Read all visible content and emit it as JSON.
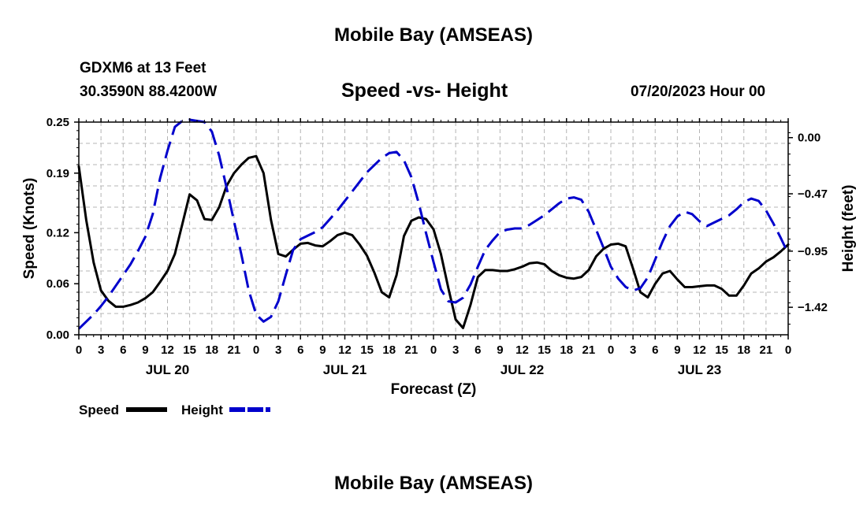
{
  "header": {
    "main_title": "Mobile Bay (AMSEAS)",
    "station": "GDXM6 at 13 Feet",
    "coords": "30.3590N  88.4200W",
    "subtitle": "Speed -vs- Height",
    "datetime": "07/20/2023 Hour 00"
  },
  "footer": {
    "title": "Mobile Bay (AMSEAS)"
  },
  "chart_data": {
    "type": "line",
    "title": "Speed -vs- Height",
    "xlabel": "Forecast (Z)",
    "ylabel_left": "Speed (Knots)",
    "ylabel_right": "Height (feet)",
    "x_unit": "hours from 07/20/2023 00Z",
    "xlim": [
      0,
      96
    ],
    "x_ticks": [
      0,
      3,
      6,
      9,
      12,
      15,
      18,
      21,
      24,
      27,
      30,
      33,
      36,
      39,
      42,
      45,
      48,
      51,
      54,
      57,
      60,
      63,
      66,
      69,
      72,
      75,
      78,
      81,
      84,
      87,
      90,
      93,
      96
    ],
    "x_tick_labels": [
      "0",
      "3",
      "6",
      "9",
      "12",
      "15",
      "18",
      "21",
      "0",
      "3",
      "6",
      "9",
      "12",
      "15",
      "18",
      "21",
      "0",
      "3",
      "6",
      "9",
      "12",
      "15",
      "18",
      "21",
      "0",
      "3",
      "6",
      "9",
      "12",
      "15",
      "18",
      "21",
      "0"
    ],
    "day_labels": [
      {
        "x": 12,
        "label": "JUL 20"
      },
      {
        "x": 36,
        "label": "JUL 21"
      },
      {
        "x": 60,
        "label": "JUL 22"
      },
      {
        "x": 84,
        "label": "JUL 23"
      }
    ],
    "y_left": {
      "range": [
        0.0,
        0.25
      ],
      "ticks": [
        0.0,
        0.06,
        0.12,
        0.19,
        0.25
      ],
      "tick_labels": [
        "0.00",
        "0.06",
        "0.12",
        "0.19",
        "0.25"
      ]
    },
    "y_right": {
      "range": [
        -1.65,
        0.13
      ],
      "ticks": [
        0.0,
        -0.47,
        -0.95,
        -1.42
      ],
      "tick_labels": [
        "0.00",
        "−0.47",
        "−0.95",
        "−1.42"
      ]
    },
    "grid": true,
    "legend": [
      {
        "label": "Speed",
        "color": "#000000",
        "style": "solid"
      },
      {
        "label": "Height",
        "color": "#0000cc",
        "style": "dashed"
      }
    ],
    "series": [
      {
        "name": "Speed",
        "axis": "left",
        "color": "#000000",
        "dash": "solid",
        "points": [
          [
            0,
            0.198
          ],
          [
            1,
            0.135
          ],
          [
            2,
            0.085
          ],
          [
            3,
            0.052
          ],
          [
            4,
            0.04
          ],
          [
            5,
            0.033
          ],
          [
            6,
            0.033
          ],
          [
            7,
            0.035
          ],
          [
            8,
            0.038
          ],
          [
            9,
            0.043
          ],
          [
            10,
            0.05
          ],
          [
            11,
            0.062
          ],
          [
            12,
            0.075
          ],
          [
            13,
            0.095
          ],
          [
            14,
            0.13
          ],
          [
            15,
            0.165
          ],
          [
            16,
            0.158
          ],
          [
            17,
            0.136
          ],
          [
            18,
            0.135
          ],
          [
            19,
            0.15
          ],
          [
            20,
            0.175
          ],
          [
            21,
            0.19
          ],
          [
            22,
            0.2
          ],
          [
            23,
            0.208
          ],
          [
            24,
            0.21
          ],
          [
            25,
            0.19
          ],
          [
            26,
            0.135
          ],
          [
            27,
            0.095
          ],
          [
            28,
            0.092
          ],
          [
            29,
            0.1
          ],
          [
            30,
            0.107
          ],
          [
            31,
            0.108
          ],
          [
            32,
            0.105
          ],
          [
            33,
            0.104
          ],
          [
            34,
            0.11
          ],
          [
            35,
            0.117
          ],
          [
            36,
            0.12
          ],
          [
            37,
            0.117
          ],
          [
            38,
            0.106
          ],
          [
            39,
            0.093
          ],
          [
            40,
            0.073
          ],
          [
            41,
            0.05
          ],
          [
            42,
            0.044
          ],
          [
            43,
            0.07
          ],
          [
            44,
            0.116
          ],
          [
            45,
            0.134
          ],
          [
            46,
            0.138
          ],
          [
            47,
            0.136
          ],
          [
            48,
            0.124
          ],
          [
            49,
            0.095
          ],
          [
            50,
            0.055
          ],
          [
            51,
            0.018
          ],
          [
            52,
            0.008
          ],
          [
            53,
            0.035
          ],
          [
            54,
            0.068
          ],
          [
            55,
            0.076
          ],
          [
            56,
            0.076
          ],
          [
            57,
            0.075
          ],
          [
            58,
            0.075
          ],
          [
            59,
            0.077
          ],
          [
            60,
            0.08
          ],
          [
            61,
            0.084
          ],
          [
            62,
            0.085
          ],
          [
            63,
            0.083
          ],
          [
            64,
            0.075
          ],
          [
            65,
            0.07
          ],
          [
            66,
            0.067
          ],
          [
            67,
            0.066
          ],
          [
            68,
            0.068
          ],
          [
            69,
            0.076
          ],
          [
            70,
            0.092
          ],
          [
            71,
            0.101
          ],
          [
            72,
            0.106
          ],
          [
            73,
            0.107
          ],
          [
            74,
            0.104
          ],
          [
            75,
            0.078
          ],
          [
            76,
            0.05
          ],
          [
            77,
            0.044
          ],
          [
            78,
            0.06
          ],
          [
            79,
            0.072
          ],
          [
            80,
            0.075
          ],
          [
            81,
            0.065
          ],
          [
            82,
            0.056
          ],
          [
            83,
            0.056
          ],
          [
            84,
            0.057
          ],
          [
            85,
            0.058
          ],
          [
            86,
            0.058
          ],
          [
            87,
            0.054
          ],
          [
            88,
            0.046
          ],
          [
            89,
            0.046
          ],
          [
            90,
            0.058
          ],
          [
            91,
            0.072
          ],
          [
            92,
            0.078
          ],
          [
            93,
            0.086
          ],
          [
            94,
            0.091
          ],
          [
            95,
            0.098
          ],
          [
            96,
            0.106
          ]
        ]
      },
      {
        "name": "Height",
        "axis": "right",
        "color": "#0000cc",
        "dash": "dashed",
        "points": [
          [
            0,
            -1.6
          ],
          [
            1,
            -1.54
          ],
          [
            2,
            -1.48
          ],
          [
            3,
            -1.41
          ],
          [
            4,
            -1.33
          ],
          [
            5,
            -1.24
          ],
          [
            6,
            -1.15
          ],
          [
            7,
            -1.06
          ],
          [
            8,
            -0.95
          ],
          [
            9,
            -0.83
          ],
          [
            10,
            -0.64
          ],
          [
            11,
            -0.34
          ],
          [
            12,
            -0.11
          ],
          [
            13,
            0.09
          ],
          [
            14,
            0.14
          ],
          [
            15,
            0.15
          ],
          [
            16,
            0.14
          ],
          [
            17,
            0.13
          ],
          [
            18,
            0.05
          ],
          [
            19,
            -0.15
          ],
          [
            20,
            -0.42
          ],
          [
            21,
            -0.7
          ],
          [
            22,
            -0.98
          ],
          [
            23,
            -1.28
          ],
          [
            24,
            -1.48
          ],
          [
            25,
            -1.54
          ],
          [
            26,
            -1.5
          ],
          [
            27,
            -1.37
          ],
          [
            28,
            -1.15
          ],
          [
            29,
            -0.94
          ],
          [
            30,
            -0.85
          ],
          [
            31,
            -0.82
          ],
          [
            32,
            -0.79
          ],
          [
            33,
            -0.75
          ],
          [
            34,
            -0.68
          ],
          [
            35,
            -0.61
          ],
          [
            36,
            -0.53
          ],
          [
            37,
            -0.45
          ],
          [
            38,
            -0.37
          ],
          [
            39,
            -0.29
          ],
          [
            40,
            -0.23
          ],
          [
            41,
            -0.17
          ],
          [
            42,
            -0.13
          ],
          [
            43,
            -0.12
          ],
          [
            44,
            -0.19
          ],
          [
            45,
            -0.33
          ],
          [
            46,
            -0.55
          ],
          [
            47,
            -0.8
          ],
          [
            48,
            -1.04
          ],
          [
            49,
            -1.27
          ],
          [
            50,
            -1.37
          ],
          [
            51,
            -1.38
          ],
          [
            52,
            -1.34
          ],
          [
            53,
            -1.23
          ],
          [
            54,
            -1.08
          ],
          [
            55,
            -0.94
          ],
          [
            56,
            -0.86
          ],
          [
            57,
            -0.79
          ],
          [
            58,
            -0.77
          ],
          [
            59,
            -0.76
          ],
          [
            60,
            -0.76
          ],
          [
            61,
            -0.73
          ],
          [
            62,
            -0.69
          ],
          [
            63,
            -0.65
          ],
          [
            64,
            -0.6
          ],
          [
            65,
            -0.55
          ],
          [
            66,
            -0.51
          ],
          [
            67,
            -0.5
          ],
          [
            68,
            -0.52
          ],
          [
            69,
            -0.62
          ],
          [
            70,
            -0.77
          ],
          [
            71,
            -0.92
          ],
          [
            72,
            -1.08
          ],
          [
            73,
            -1.18
          ],
          [
            74,
            -1.25
          ],
          [
            75,
            -1.28
          ],
          [
            76,
            -1.26
          ],
          [
            77,
            -1.17
          ],
          [
            78,
            -1.02
          ],
          [
            79,
            -0.87
          ],
          [
            80,
            -0.74
          ],
          [
            81,
            -0.66
          ],
          [
            82,
            -0.62
          ],
          [
            83,
            -0.64
          ],
          [
            84,
            -0.7
          ],
          [
            85,
            -0.74
          ],
          [
            86,
            -0.71
          ],
          [
            87,
            -0.68
          ],
          [
            88,
            -0.65
          ],
          [
            89,
            -0.6
          ],
          [
            90,
            -0.54
          ],
          [
            91,
            -0.51
          ],
          [
            92,
            -0.53
          ],
          [
            93,
            -0.61
          ],
          [
            94,
            -0.72
          ],
          [
            95,
            -0.84
          ],
          [
            96,
            -0.97
          ]
        ]
      }
    ]
  }
}
